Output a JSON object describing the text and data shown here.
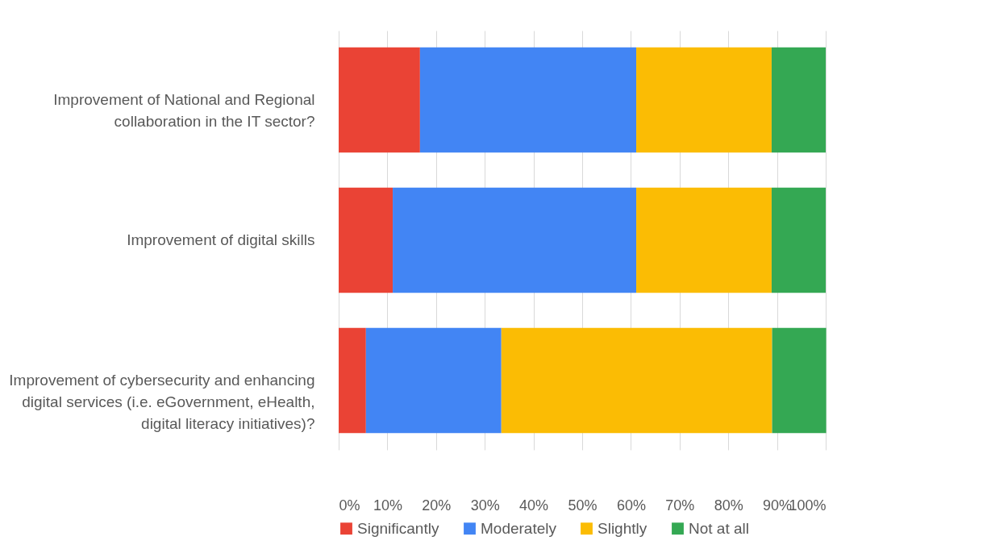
{
  "chart_data": {
    "type": "bar",
    "orientation": "horizontal",
    "stacked": true,
    "categories": [
      "Improvement of National and Regional collaboration in the IT sector?",
      "Improvement of digital skills",
      "Improvement of cybersecurity and enhancing digital services (i.e. eGovernment, eHealth, digital literacy initiatives)?"
    ],
    "series": [
      {
        "name": "Significantly",
        "color": "#ea4335",
        "values": [
          16.7,
          11.1,
          5.6
        ]
      },
      {
        "name": "Moderately",
        "color": "#4285f4",
        "values": [
          44.4,
          50,
          27.8
        ]
      },
      {
        "name": "Slightly",
        "color": "#fbbc04",
        "values": [
          27.8,
          27.8,
          55.6
        ]
      },
      {
        "name": "Not at all",
        "color": "#34a853",
        "values": [
          11.1,
          11.1,
          11.1
        ]
      }
    ],
    "xlim": [
      0,
      100
    ],
    "xticks": [
      {
        "value": 0,
        "label": "0%"
      },
      {
        "value": 10,
        "label": "10%"
      },
      {
        "value": 20,
        "label": "20%"
      },
      {
        "value": 30,
        "label": "30%"
      },
      {
        "value": 40,
        "label": "40%"
      },
      {
        "value": 50,
        "label": "50%"
      },
      {
        "value": 60,
        "label": "60%"
      },
      {
        "value": 70,
        "label": "70%"
      },
      {
        "value": 80,
        "label": "80%"
      },
      {
        "value": 90,
        "label": "90%"
      },
      {
        "value": 100,
        "label": "100%"
      }
    ],
    "grid": "x",
    "legend": "bottom"
  }
}
